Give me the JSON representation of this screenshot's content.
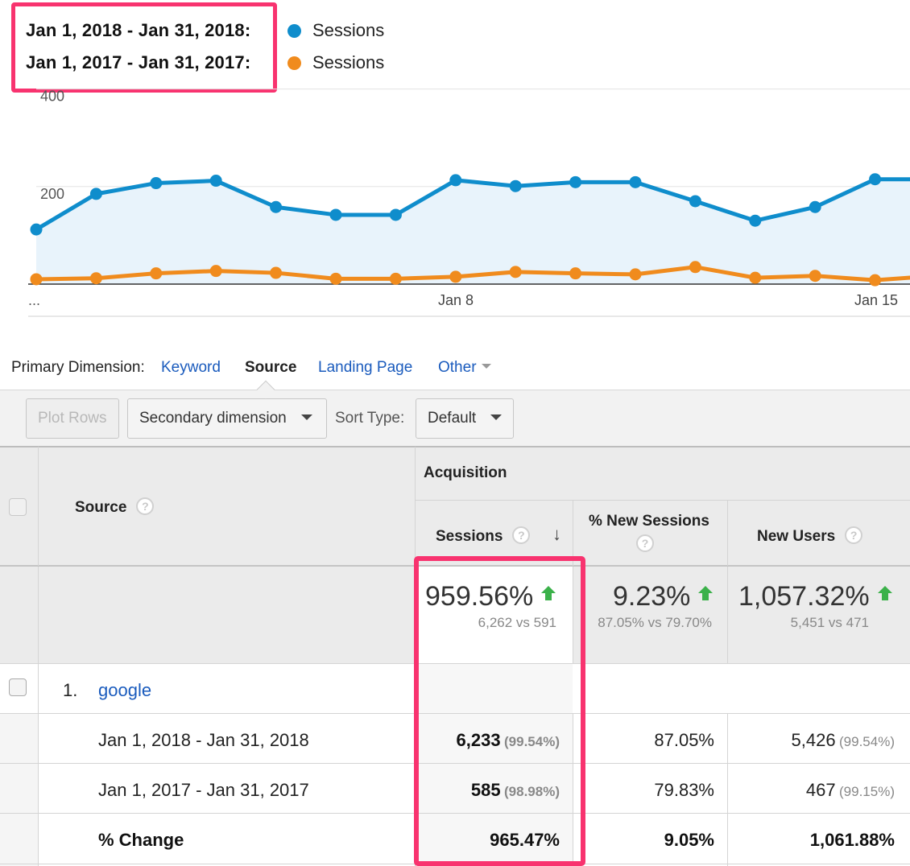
{
  "legend": {
    "rows": [
      {
        "date_range": "Jan 1, 2018 - Jan 31, 2018:",
        "metric": "Sessions",
        "color": "#0f8dcc"
      },
      {
        "date_range": "Jan 1, 2017 - Jan 31, 2017:",
        "metric": "Sessions",
        "color": "#f08b1d"
      }
    ]
  },
  "chart_data": {
    "type": "line",
    "title": "",
    "xlabel": "",
    "ylabel": "",
    "ylim": [
      0,
      400
    ],
    "y_ticks": [
      "400",
      "200"
    ],
    "x_tick_labels": [
      "...",
      "Jan 8",
      "Jan 15"
    ],
    "x": [
      1,
      2,
      3,
      4,
      5,
      6,
      7,
      8,
      9,
      10,
      11,
      12,
      13,
      14,
      15,
      16
    ],
    "series": [
      {
        "name": "Jan 1, 2018 - Jan 31, 2018: Sessions",
        "color": "#0f8dcc",
        "values": [
          112,
          185,
          207,
          212,
          158,
          142,
          142,
          213,
          201,
          209,
          209,
          170,
          130,
          158,
          215,
          215
        ]
      },
      {
        "name": "Jan 1, 2017 - Jan 31, 2017: Sessions",
        "color": "#f08b1d",
        "values": [
          10,
          12,
          22,
          27,
          23,
          11,
          11,
          15,
          25,
          22,
          20,
          35,
          13,
          17,
          8,
          17
        ]
      }
    ]
  },
  "primary_dimension": {
    "label": "Primary Dimension:",
    "options": [
      {
        "label": "Keyword",
        "active": false
      },
      {
        "label": "Source",
        "active": true
      },
      {
        "label": "Landing Page",
        "active": false
      },
      {
        "label": "Other",
        "active": false
      }
    ]
  },
  "toolbar": {
    "plot_rows": "Plot Rows",
    "secondary_dimension": "Secondary dimension",
    "sort_type_label": "Sort Type:",
    "sort_type_value": "Default"
  },
  "table": {
    "source_header": "Source",
    "group_header": "Acquisition",
    "columns": [
      "Sessions",
      "% New Sessions",
      "New Users"
    ],
    "help_glyph": "?",
    "sort_glyph": "↓",
    "totals": [
      {
        "value": "959.56%",
        "compare": "6,262 vs 591"
      },
      {
        "value": "9.23%",
        "compare": "87.05% vs 79.70%"
      },
      {
        "value": "1,057.32%",
        "compare": "5,451 vs 471"
      }
    ],
    "row": {
      "index": "1.",
      "name": "google",
      "sub_rows": [
        {
          "label": "Jan 1, 2018 - Jan 31, 2018",
          "sessions": "6,233",
          "sessions_pct": "(99.54%)",
          "new_sessions": "87.05%",
          "new_users": "5,426",
          "new_users_pct": "(99.54%)"
        },
        {
          "label": "Jan 1, 2017 - Jan 31, 2017",
          "sessions": "585",
          "sessions_pct": "(98.98%)",
          "new_sessions": "79.83%",
          "new_users": "467",
          "new_users_pct": "(99.15%)"
        },
        {
          "label": "% Change",
          "sessions": "965.47%",
          "new_sessions": "9.05%",
          "new_users": "1,061.88%"
        }
      ]
    }
  },
  "colors": {
    "highlight": "#f8336f",
    "link": "#1a5bbd",
    "up_arrow": "#3bb14a"
  }
}
